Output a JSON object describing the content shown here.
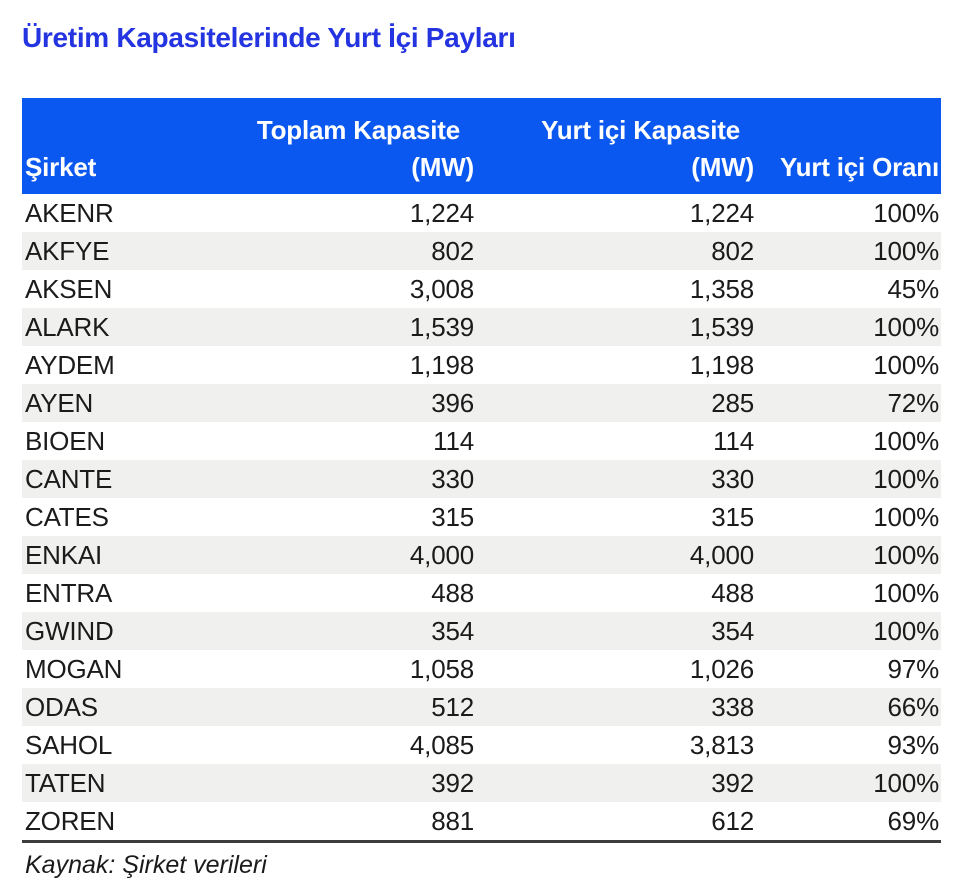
{
  "title": "Üretim Kapasitelerinde Yurt İçi Payları",
  "source_note": "Kaynak: Şirket verileri",
  "colors": {
    "title_blue": "#2434e0",
    "header_bg": "#0b58f0",
    "header_text": "#ffffff",
    "stripe_bg": "#f0f0ef",
    "body_text": "#1b1b1b",
    "border_dark": "#3d3d3d",
    "page_bg": "#ffffff"
  },
  "table": {
    "header": {
      "col1": {
        "line1": "",
        "line2": "Şirket"
      },
      "col2": {
        "line1": "Toplam Kapasite",
        "line2": "(MW)"
      },
      "col3": {
        "line1": "Yurt içi Kapasite",
        "line2": "(MW)"
      },
      "col4": {
        "line1": "",
        "line2": "Yurt içi Oranı"
      }
    },
    "rows": [
      [
        "AKENR",
        "1,224",
        "1,224",
        "100%"
      ],
      [
        "AKFYE",
        "802",
        "802",
        "100%"
      ],
      [
        "AKSEN",
        "3,008",
        "1,358",
        "45%"
      ],
      [
        "ALARK",
        "1,539",
        "1,539",
        "100%"
      ],
      [
        "AYDEM",
        "1,198",
        "1,198",
        "100%"
      ],
      [
        "AYEN",
        "396",
        "285",
        "72%"
      ],
      [
        "BIOEN",
        "114",
        "114",
        "100%"
      ],
      [
        "CANTE",
        "330",
        "330",
        "100%"
      ],
      [
        "CATES",
        "315",
        "315",
        "100%"
      ],
      [
        "ENKAI",
        "4,000",
        "4,000",
        "100%"
      ],
      [
        "ENTRA",
        "488",
        "488",
        "100%"
      ],
      [
        "GWIND",
        "354",
        "354",
        "100%"
      ],
      [
        "MOGAN",
        "1,058",
        "1,026",
        "97%"
      ],
      [
        "ODAS",
        "512",
        "338",
        "66%"
      ],
      [
        "SAHOL",
        "4,085",
        "3,813",
        "93%"
      ],
      [
        "TATEN",
        "392",
        "392",
        "100%"
      ],
      [
        "ZOREN",
        "881",
        "612",
        "69%"
      ]
    ]
  },
  "chart_data": {
    "type": "table",
    "title": "Üretim Kapasitelerinde Yurt İçi Payları",
    "columns": [
      "Şirket",
      "Toplam Kapasite (MW)",
      "Yurt içi Kapasite (MW)",
      "Yurt içi Oranı"
    ],
    "rows": [
      [
        "AKENR",
        1224,
        1224,
        "100%"
      ],
      [
        "AKFYE",
        802,
        802,
        "100%"
      ],
      [
        "AKSEN",
        3008,
        1358,
        "45%"
      ],
      [
        "ALARK",
        1539,
        1539,
        "100%"
      ],
      [
        "AYDEM",
        1198,
        1198,
        "100%"
      ],
      [
        "AYEN",
        396,
        285,
        "72%"
      ],
      [
        "BIOEN",
        114,
        114,
        "100%"
      ],
      [
        "CANTE",
        330,
        330,
        "100%"
      ],
      [
        "CATES",
        315,
        315,
        "100%"
      ],
      [
        "ENKAI",
        4000,
        4000,
        "100%"
      ],
      [
        "ENTRA",
        488,
        488,
        "100%"
      ],
      [
        "GWIND",
        354,
        354,
        "100%"
      ],
      [
        "MOGAN",
        1058,
        1026,
        "97%"
      ],
      [
        "ODAS",
        512,
        338,
        "66%"
      ],
      [
        "SAHOL",
        4085,
        3813,
        "93%"
      ],
      [
        "TATEN",
        392,
        392,
        "100%"
      ],
      [
        "ZOREN",
        881,
        612,
        "69%"
      ]
    ],
    "source": "Kaynak: Şirket verileri",
    "layout": {
      "zebra_striping": true,
      "header_background": "#0b58f0",
      "bottom_rule": true
    }
  }
}
